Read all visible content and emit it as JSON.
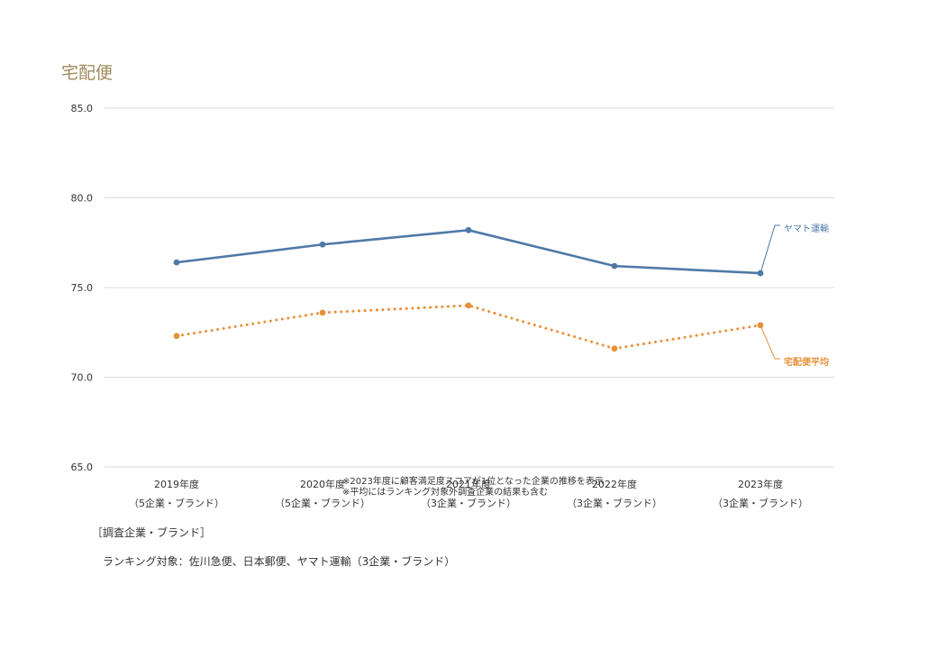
{
  "chart_data": {
    "type": "line",
    "title": "宅配便",
    "categories": [
      "2019年度\n（5企業・ブランド）",
      "2020年度\n（5企業・ブランド）",
      "2021年度\n（3企業・ブランド）",
      "2022年度\n（3企業・ブランド）",
      "2023年度\n（3企業・ブランド）"
    ],
    "series": [
      {
        "name": "ヤマト運輸",
        "values": [
          76.4,
          77.4,
          78.2,
          76.2,
          75.8
        ],
        "color": "#4f79a8",
        "style": "solid"
      },
      {
        "name": "宅配便平均",
        "values": [
          72.3,
          73.6,
          74.0,
          71.6,
          72.9
        ],
        "color": "#e8913a",
        "style": "dotted"
      }
    ],
    "ylim": [
      65.0,
      85.0
    ],
    "yticks": [
      "65.0",
      "70.0",
      "75.0",
      "80.0",
      "85.0"
    ],
    "grid": true,
    "legend": "right, labels at line ends",
    "notes": [
      "※2023年度に顧客満足度スコアが1位となった企業の推移を表示",
      "※平均にはランキング対象外調査企業の結果も含む"
    ]
  },
  "footer": {
    "heading": "［調査企業・ブランド］",
    "targets": "ランキング対象：佐川急便、日本郵便、ヤマト運輸（3企業・ブランド）"
  }
}
